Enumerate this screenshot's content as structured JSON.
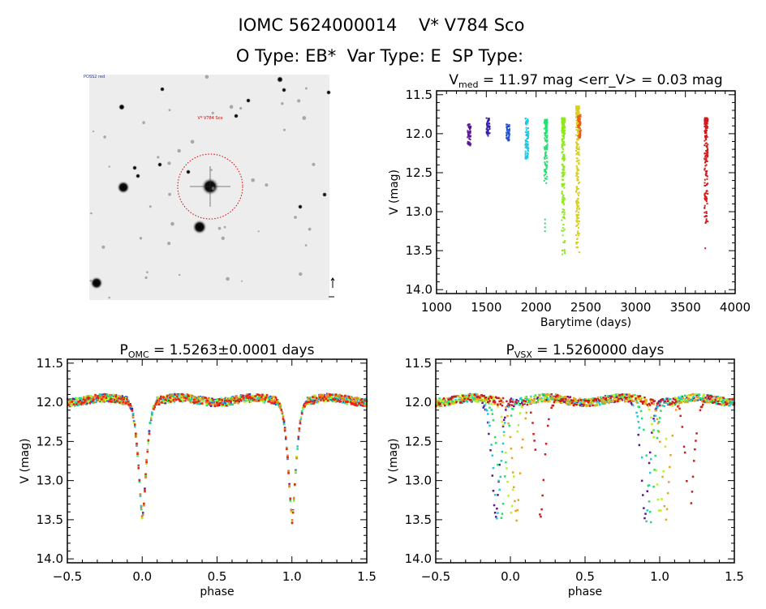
{
  "header": {
    "title": "IOMC 5624000014    V* V784 Sco",
    "subtitle": "O Type: EB*  Var Type: E  SP Type:"
  },
  "image_panel": {
    "target_label": "V* V784 Sco",
    "corner_labels": [
      "POSS2 red",
      "",
      "",
      ""
    ]
  },
  "chart_data": [
    {
      "type": "scatter",
      "title_main": "V",
      "title_sub": "med",
      "title_rest": " = 11.97 mag <err_V> = 0.03 mag",
      "xlabel": "Barytime (days)",
      "ylabel": "V (mag)",
      "xlim": [
        1000,
        4000
      ],
      "ylim": [
        14.05,
        11.45
      ],
      "xticks": [
        "1000",
        "1500",
        "2000",
        "2500",
        "3000",
        "3500",
        "4000"
      ],
      "yticks": [
        "11.5",
        "12.0",
        "12.5",
        "13.0",
        "13.5",
        "14.0"
      ],
      "seasons": [
        {
          "x": 1320,
          "mag_range": [
            11.88,
            12.15
          ],
          "color": "#5b1596"
        },
        {
          "x": 1510,
          "mag_range": [
            11.8,
            12.03
          ],
          "color": "#3a1fb0"
        },
        {
          "x": 1710,
          "mag_range": [
            11.88,
            12.09
          ],
          "color": "#1b4fd8"
        },
        {
          "x": 1900,
          "mag_range": [
            11.8,
            12.33
          ],
          "color": "#22c8e0"
        },
        {
          "x": 2090,
          "mag_range": [
            11.82,
            12.65
          ],
          "extra": [
            13.1,
            13.15,
            13.2,
            13.25
          ],
          "color": "#22e070"
        },
        {
          "x": 2265,
          "mag_range": [
            11.8,
            13.55
          ],
          "color": "#8ee81e"
        },
        {
          "x": 2410,
          "mag_range": [
            11.65,
            13.52
          ],
          "color": "#d8d020"
        },
        {
          "x": 2425,
          "mag_range": [
            11.75,
            12.05
          ],
          "color": "#f05a10"
        },
        {
          "x": 3700,
          "mag_range": [
            11.8,
            13.15
          ],
          "extra": [
            13.47
          ],
          "color": "#d01c1c"
        }
      ]
    },
    {
      "type": "scatter",
      "title_main": "P",
      "title_sub": "OMC",
      "title_rest": " = 1.5263±0.0001 days",
      "xlabel": "phase",
      "ylabel": "V (mag)",
      "xlim": [
        -0.5,
        1.5
      ],
      "ylim": [
        14.05,
        11.45
      ],
      "xticks": [
        "-0.5",
        "0.0",
        "0.5",
        "1.0",
        "1.5"
      ],
      "yticks": [
        "11.5",
        "12.0",
        "12.5",
        "13.0",
        "13.5",
        "14.0"
      ],
      "baseline_mag": 11.97,
      "eclipse_profile": [
        [
          0,
          13.52
        ],
        [
          0.01,
          13.3
        ],
        [
          0.02,
          13.0
        ],
        [
          0.03,
          12.7
        ],
        [
          0.05,
          12.3
        ],
        [
          0.07,
          12.08
        ],
        [
          0.1,
          11.98
        ]
      ],
      "seasons": [
        {
          "color": "#5b1596",
          "eclipse_minimum_phase": 0.0
        },
        {
          "color": "#1b4fd8",
          "eclipse_minimum_phase": 0.0
        },
        {
          "color": "#22c8e0",
          "eclipse_minimum_phase": 0.0
        },
        {
          "color": "#22e070",
          "eclipse_minimum_phase": 0.0
        },
        {
          "color": "#b8f020",
          "eclipse_minimum_phase": 0.0
        },
        {
          "color": "#f08020",
          "eclipse_minimum_phase": 0.0
        },
        {
          "color": "#f02010",
          "eclipse_minimum_phase": 0.0
        }
      ]
    },
    {
      "type": "scatter",
      "title_main": "P",
      "title_sub": "VSX",
      "title_rest": " = 1.5260000 days",
      "xlabel": "phase",
      "ylabel": "V (mag)",
      "xlim": [
        -0.5,
        1.5
      ],
      "ylim": [
        14.05,
        11.45
      ],
      "xticks": [
        "-0.5",
        "0.0",
        "0.5",
        "1.0",
        "1.5"
      ],
      "yticks": [
        "11.5",
        "12.0",
        "12.5",
        "13.0",
        "13.5",
        "14.0"
      ],
      "baseline_mag": 11.97,
      "eclipse_profile": [
        [
          0,
          13.52
        ],
        [
          0.01,
          13.3
        ],
        [
          0.02,
          13.0
        ],
        [
          0.03,
          12.7
        ],
        [
          0.05,
          12.3
        ],
        [
          0.07,
          12.08
        ],
        [
          0.1,
          11.98
        ]
      ],
      "seasons": [
        {
          "color": "#5b1596",
          "eclipse_minimum_phase": -0.1
        },
        {
          "color": "#22c8e0",
          "eclipse_minimum_phase": -0.09
        },
        {
          "color": "#22e070",
          "eclipse_minimum_phase": -0.06
        },
        {
          "color": "#b8f020",
          "eclipse_minimum_phase": 0.0
        },
        {
          "color": "#f0a020",
          "eclipse_minimum_phase": 0.04
        },
        {
          "color": "#d01c1c",
          "eclipse_minimum_phase": 0.2
        }
      ]
    }
  ]
}
